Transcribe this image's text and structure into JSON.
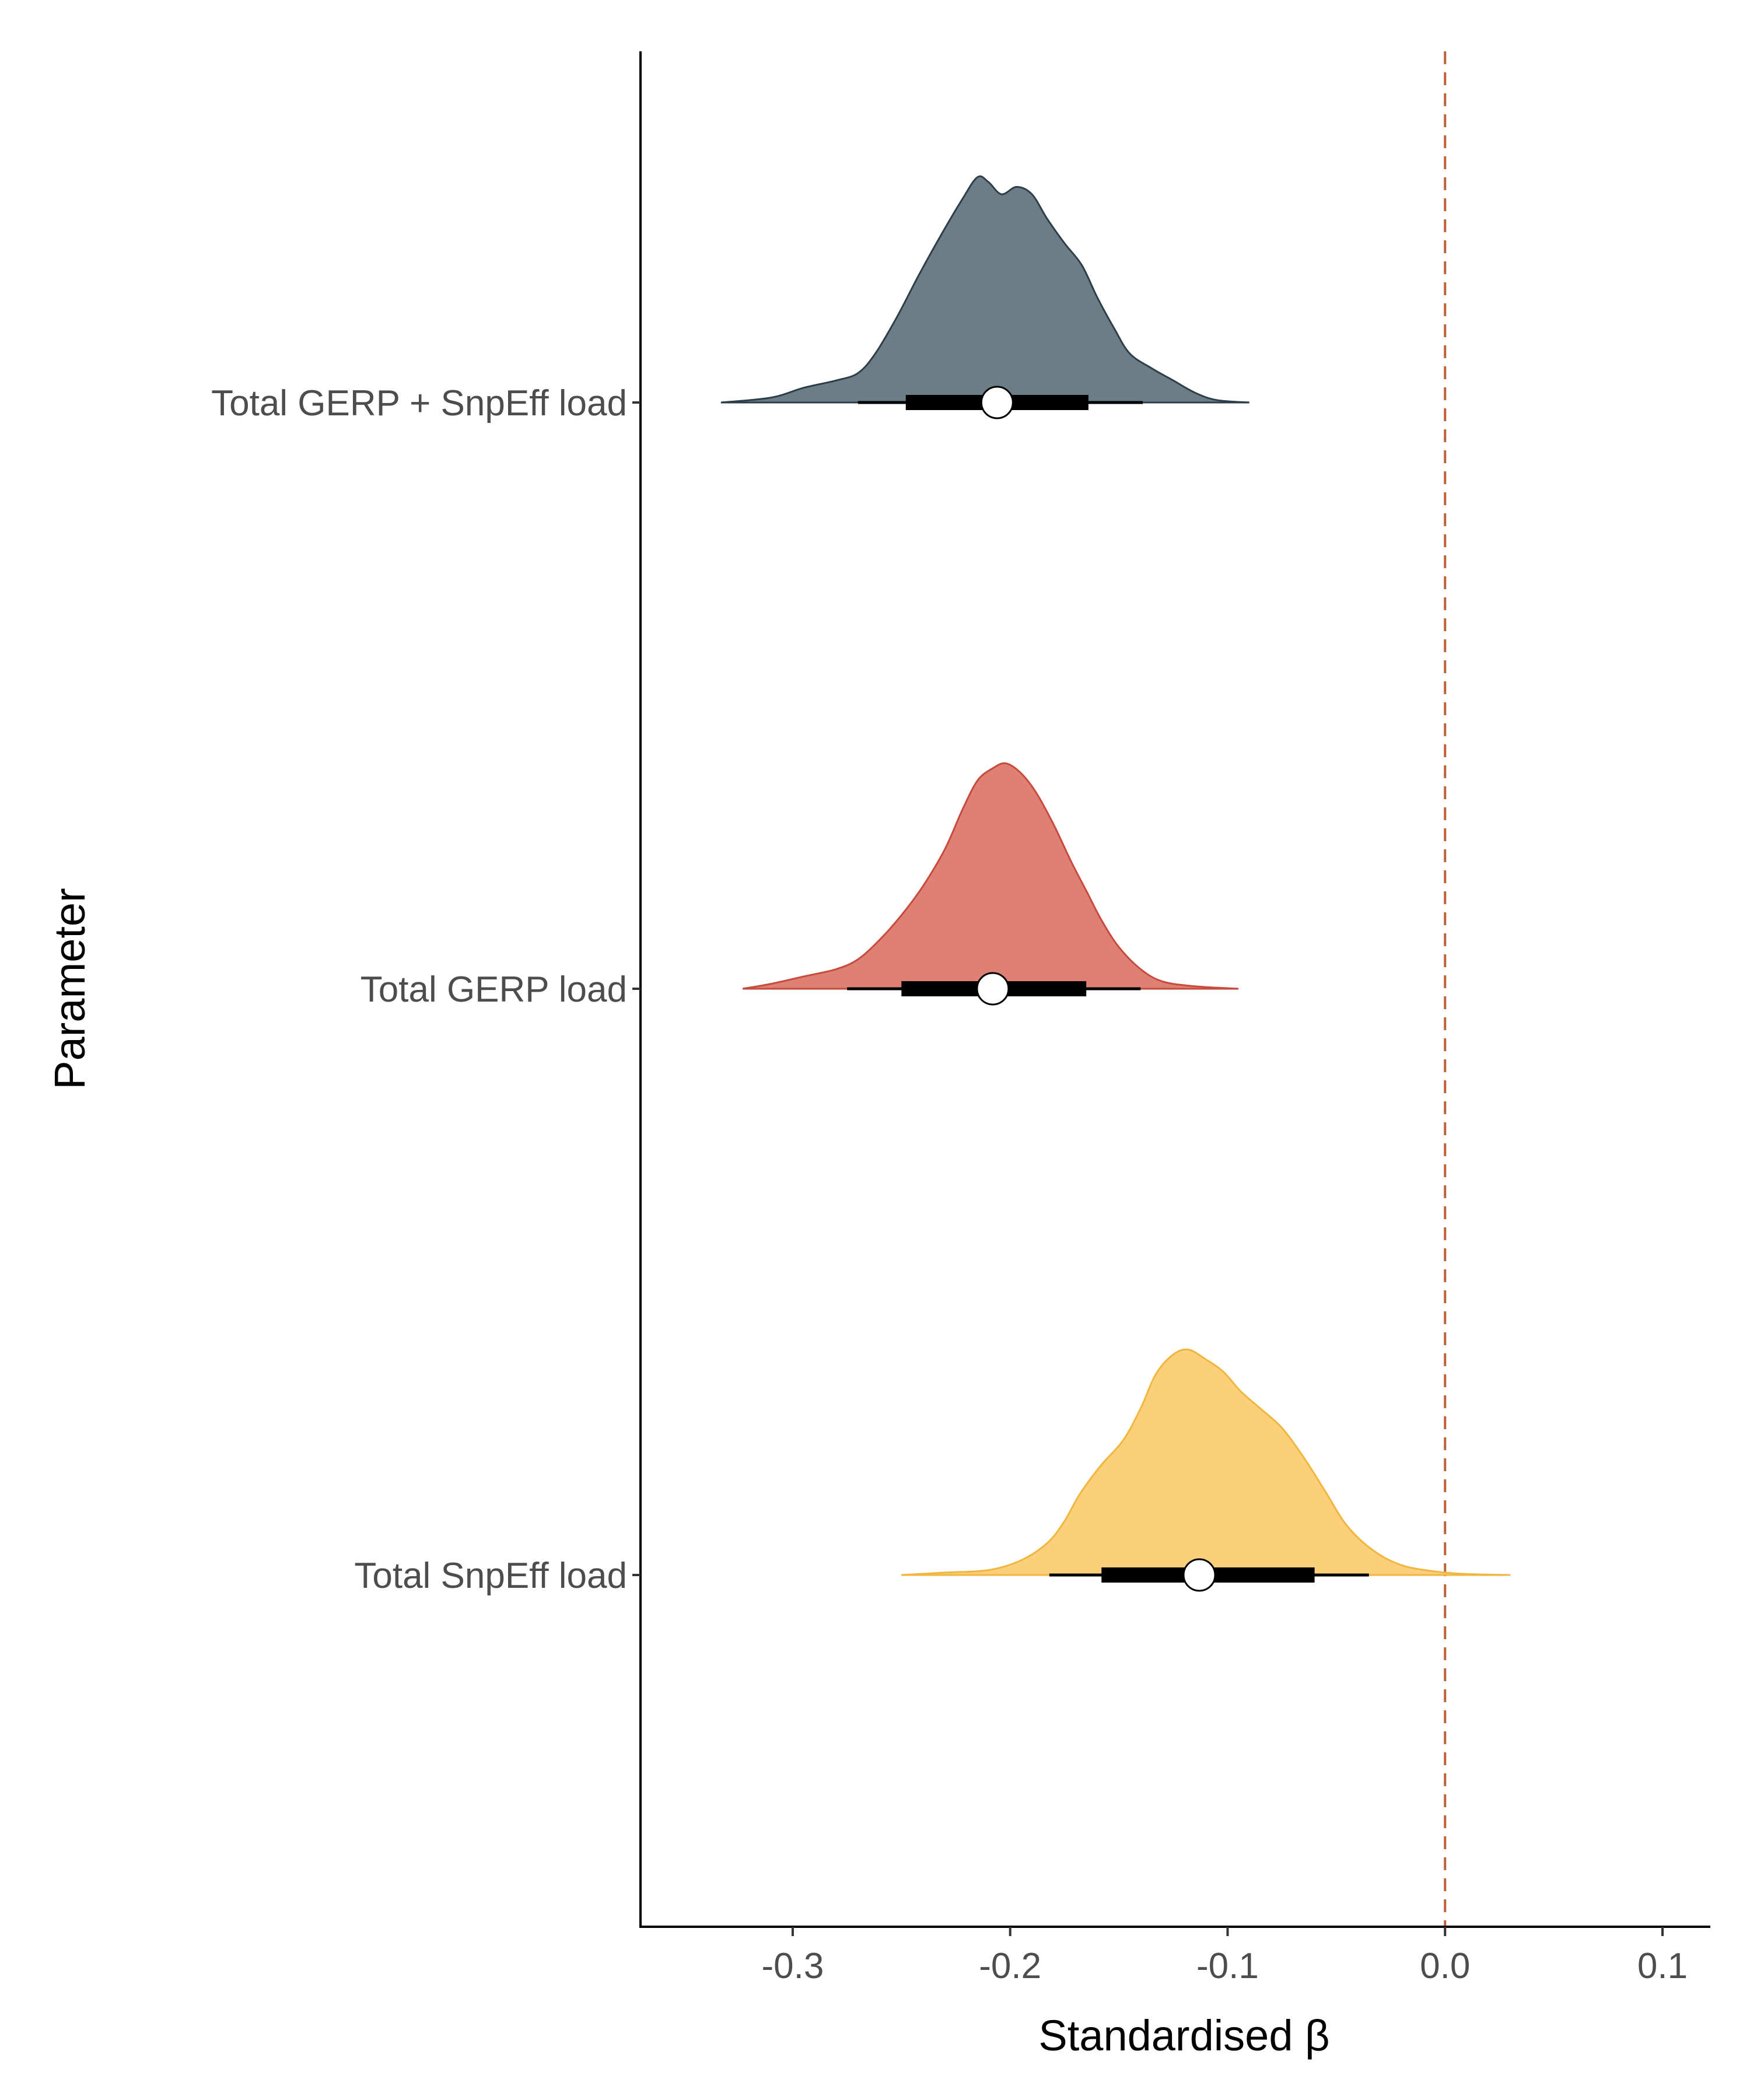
{
  "chart_data": {
    "type": "halfeye",
    "title": "",
    "xlabel": "Standardised β",
    "ylabel": "Parameter",
    "xlim": [
      -0.37,
      0.122
    ],
    "x_ticks": [
      -0.3,
      -0.2,
      -0.1,
      0.0,
      0.1
    ],
    "x_tick_labels": [
      "-0.3",
      "-0.2",
      "-0.1",
      "0.0",
      "0.1"
    ],
    "reference_line": {
      "x": 0.0,
      "style": "dashed",
      "color": "#c0623a"
    },
    "grid": false,
    "legend": "none",
    "categories": [
      "Total GERP + SnpEff load",
      "Total GERP load",
      "Total SnpEff load"
    ],
    "series": [
      {
        "category": "Total GERP + SnpEff load",
        "fill": "#6b7e86",
        "stroke": "#2d3e48",
        "median": -0.206,
        "interval_66": [
          -0.248,
          -0.164
        ],
        "interval_95": [
          -0.27,
          -0.139
        ],
        "density": [
          [
            -0.333,
            0.0
          ],
          [
            -0.31,
            0.02
          ],
          [
            -0.295,
            0.06
          ],
          [
            -0.28,
            0.09
          ],
          [
            -0.27,
            0.12
          ],
          [
            -0.262,
            0.2
          ],
          [
            -0.252,
            0.35
          ],
          [
            -0.242,
            0.52
          ],
          [
            -0.232,
            0.68
          ],
          [
            -0.222,
            0.83
          ],
          [
            -0.215,
            0.92
          ],
          [
            -0.21,
            0.9
          ],
          [
            -0.204,
            0.85
          ],
          [
            -0.197,
            0.88
          ],
          [
            -0.19,
            0.85
          ],
          [
            -0.183,
            0.75
          ],
          [
            -0.175,
            0.65
          ],
          [
            -0.167,
            0.56
          ],
          [
            -0.16,
            0.43
          ],
          [
            -0.152,
            0.3
          ],
          [
            -0.145,
            0.2
          ],
          [
            -0.135,
            0.14
          ],
          [
            -0.125,
            0.09
          ],
          [
            -0.115,
            0.04
          ],
          [
            -0.105,
            0.01
          ],
          [
            -0.09,
            0.0
          ]
        ]
      },
      {
        "category": "Total GERP load",
        "fill": "#df8074",
        "stroke": "#c84a3c",
        "median": -0.208,
        "interval_66": [
          -0.25,
          -0.165
        ],
        "interval_95": [
          -0.275,
          -0.14
        ],
        "density": [
          [
            -0.323,
            0.0
          ],
          [
            -0.31,
            0.02
          ],
          [
            -0.295,
            0.05
          ],
          [
            -0.28,
            0.08
          ],
          [
            -0.27,
            0.12
          ],
          [
            -0.26,
            0.2
          ],
          [
            -0.25,
            0.3
          ],
          [
            -0.24,
            0.42
          ],
          [
            -0.23,
            0.57
          ],
          [
            -0.222,
            0.73
          ],
          [
            -0.215,
            0.85
          ],
          [
            -0.208,
            0.9
          ],
          [
            -0.202,
            0.92
          ],
          [
            -0.195,
            0.88
          ],
          [
            -0.188,
            0.8
          ],
          [
            -0.18,
            0.67
          ],
          [
            -0.172,
            0.52
          ],
          [
            -0.165,
            0.4
          ],
          [
            -0.158,
            0.28
          ],
          [
            -0.15,
            0.17
          ],
          [
            -0.14,
            0.08
          ],
          [
            -0.13,
            0.03
          ],
          [
            -0.115,
            0.01
          ],
          [
            -0.095,
            0.0
          ]
        ]
      },
      {
        "category": "Total SnpEff load",
        "fill": "#fccf7a",
        "stroke": "#f0b63e",
        "median": -0.113,
        "interval_66": [
          -0.158,
          -0.06
        ],
        "interval_95": [
          -0.182,
          -0.035
        ],
        "density": [
          [
            -0.25,
            0.0
          ],
          [
            -0.23,
            0.01
          ],
          [
            -0.21,
            0.02
          ],
          [
            -0.195,
            0.06
          ],
          [
            -0.183,
            0.13
          ],
          [
            -0.175,
            0.22
          ],
          [
            -0.168,
            0.33
          ],
          [
            -0.158,
            0.45
          ],
          [
            -0.148,
            0.55
          ],
          [
            -0.14,
            0.68
          ],
          [
            -0.133,
            0.82
          ],
          [
            -0.125,
            0.9
          ],
          [
            -0.118,
            0.92
          ],
          [
            -0.11,
            0.88
          ],
          [
            -0.102,
            0.83
          ],
          [
            -0.094,
            0.75
          ],
          [
            -0.085,
            0.68
          ],
          [
            -0.075,
            0.6
          ],
          [
            -0.065,
            0.48
          ],
          [
            -0.055,
            0.34
          ],
          [
            -0.045,
            0.2
          ],
          [
            -0.033,
            0.1
          ],
          [
            -0.02,
            0.04
          ],
          [
            -0.005,
            0.015
          ],
          [
            0.01,
            0.004
          ],
          [
            0.03,
            0.0
          ]
        ]
      }
    ]
  }
}
